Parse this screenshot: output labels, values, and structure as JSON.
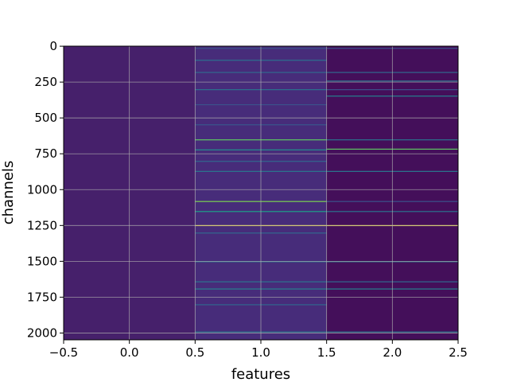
{
  "chart_data": {
    "type": "heatmap",
    "title": "",
    "xlabel": "features",
    "ylabel": "channels",
    "xlim": [
      -0.5,
      2.5
    ],
    "ylim": [
      2047.5,
      -0.5
    ],
    "x_tick_labels": [
      "−0.5",
      "0.0",
      "0.5",
      "1.0",
      "1.5",
      "2.0",
      "2.5"
    ],
    "x_tick_values": [
      -0.5,
      0.0,
      0.5,
      1.0,
      1.5,
      2.0,
      2.5
    ],
    "y_tick_labels": [
      "0",
      "250",
      "500",
      "750",
      "1000",
      "1250",
      "1500",
      "1750",
      "2000"
    ],
    "y_tick_values": [
      0,
      250,
      500,
      750,
      1000,
      1250,
      1500,
      1750,
      2000
    ],
    "grid": true,
    "colormap": "viridis",
    "n_channels": 2048,
    "columns": [
      {
        "feature": 0,
        "base_color": "#46206b",
        "stripes": []
      },
      {
        "feature": 1,
        "base_color": "#472c7a",
        "stripes": [
          {
            "channel": 12,
            "color": "#3b528b"
          },
          {
            "channel": 95,
            "color": "#2c718e"
          },
          {
            "channel": 180,
            "color": "#31688e"
          },
          {
            "channel": 300,
            "color": "#2c728e"
          },
          {
            "channel": 405,
            "color": "#3b528b"
          },
          {
            "channel": 545,
            "color": "#39568c"
          },
          {
            "channel": 650,
            "color": "#5ec962"
          },
          {
            "channel": 720,
            "color": "#21918c"
          },
          {
            "channel": 800,
            "color": "#31688e"
          },
          {
            "channel": 870,
            "color": "#2a788e"
          },
          {
            "channel": 1080,
            "color": "#7ad151"
          },
          {
            "channel": 1150,
            "color": "#1fa188"
          },
          {
            "channel": 1248,
            "color": "#fde725"
          },
          {
            "channel": 1300,
            "color": "#31688e"
          },
          {
            "channel": 1500,
            "color": "#2a788e"
          },
          {
            "channel": 1640,
            "color": "#2c728e"
          },
          {
            "channel": 1690,
            "color": "#26828e"
          },
          {
            "channel": 1800,
            "color": "#31688e"
          },
          {
            "channel": 1990,
            "color": "#2a788e"
          }
        ]
      },
      {
        "feature": 2,
        "base_color": "#440f5a",
        "stripes": [
          {
            "channel": 12,
            "color": "#3b528b"
          },
          {
            "channel": 180,
            "color": "#31688e"
          },
          {
            "channel": 240,
            "color": "#2c728e"
          },
          {
            "channel": 300,
            "color": "#3b528b"
          },
          {
            "channel": 345,
            "color": "#26828e"
          },
          {
            "channel": 650,
            "color": "#2c728e"
          },
          {
            "channel": 715,
            "color": "#5ec962"
          },
          {
            "channel": 870,
            "color": "#2a788e"
          },
          {
            "channel": 1080,
            "color": "#3b528b"
          },
          {
            "channel": 1150,
            "color": "#2c728e"
          },
          {
            "channel": 1248,
            "color": "#fde725"
          },
          {
            "channel": 1500,
            "color": "#2a788e"
          },
          {
            "channel": 1640,
            "color": "#31688e"
          },
          {
            "channel": 1690,
            "color": "#26828e"
          },
          {
            "channel": 1990,
            "color": "#2a788e"
          }
        ]
      }
    ]
  }
}
